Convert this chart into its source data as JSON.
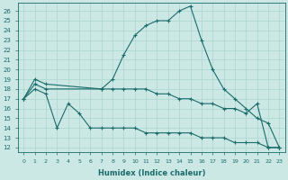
{
  "xlabel": "Humidex (Indice chaleur)",
  "bg_color": "#cce8e4",
  "grid_color": "#b0d8d4",
  "line_color": "#1a6b6b",
  "xlim": [
    -0.5,
    23.5
  ],
  "ylim": [
    11.5,
    26.8
  ],
  "xticks": [
    0,
    1,
    2,
    3,
    4,
    5,
    6,
    7,
    8,
    9,
    10,
    11,
    12,
    13,
    14,
    15,
    16,
    17,
    18,
    19,
    20,
    21,
    22,
    23
  ],
  "yticks": [
    12,
    13,
    14,
    15,
    16,
    17,
    18,
    19,
    20,
    21,
    22,
    23,
    24,
    25,
    26
  ],
  "lines": [
    {
      "x": [
        0,
        1,
        2,
        7,
        8,
        9,
        10,
        11,
        12,
        13,
        14,
        15,
        16,
        17,
        18,
        19,
        20,
        21,
        22,
        23
      ],
      "y": [
        17,
        19,
        18.5,
        18,
        19,
        21.5,
        23.5,
        24.5,
        25,
        25,
        26,
        26.5,
        23,
        20,
        18,
        17,
        16,
        15,
        14.5,
        12
      ]
    },
    {
      "x": [
        0,
        1,
        2,
        7,
        8,
        9,
        10,
        11,
        12,
        13,
        14,
        15,
        16,
        17,
        18,
        19,
        20,
        21,
        22,
        23
      ],
      "y": [
        17,
        18.5,
        18,
        18,
        18,
        18,
        18,
        18,
        17.5,
        17.5,
        17,
        17,
        16.5,
        16.5,
        16,
        16,
        15.5,
        16.5,
        12,
        12
      ]
    },
    {
      "x": [
        0,
        1,
        2,
        3,
        4,
        5,
        6,
        7,
        8,
        9,
        10,
        11,
        12,
        13,
        14,
        15,
        16,
        17,
        18,
        19,
        20,
        21,
        22,
        23
      ],
      "y": [
        17,
        18,
        17.5,
        14,
        16.5,
        15.5,
        14,
        14,
        14,
        14,
        14,
        13.5,
        13.5,
        13.5,
        13.5,
        13.5,
        13,
        13,
        13,
        12.5,
        12.5,
        12.5,
        12,
        12
      ]
    }
  ]
}
